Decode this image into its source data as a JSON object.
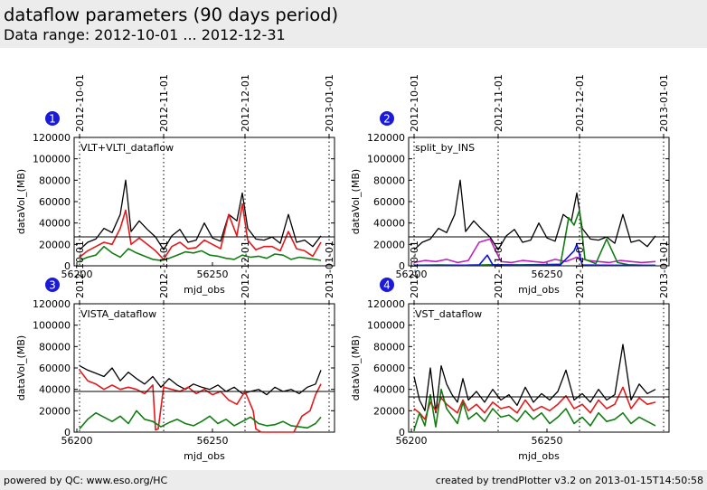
{
  "header": {
    "title": "dataflow parameters (90 days period)",
    "subtitle": "Data range: 2012-10-01 ... 2012-12-31"
  },
  "footer": {
    "left": "powered by QC: www.eso.org/HC",
    "right": "created by trendPlotter v3.2 on 2013-01-15T14:50:58"
  },
  "colors": {
    "black": "#000000",
    "red": "#e31a1c",
    "green": "#137d13",
    "magenta": "#c020c0",
    "blue": "#1010e0",
    "badge": "#1a1ad8"
  },
  "chart_data": [
    {
      "type": "line",
      "badge": "1",
      "title": "VLT+VLTI_dataflow",
      "xlabel": "mjd_obs",
      "ylabel": "dataVol_(MB)",
      "xlim": [
        56199,
        56295
      ],
      "ylim": [
        0,
        120000
      ],
      "xticks": [
        56200,
        56250
      ],
      "yticks": [
        0,
        20000,
        40000,
        60000,
        80000,
        100000,
        120000
      ],
      "date_markers": [
        {
          "label": "2012-10-01",
          "mjd": 56201
        },
        {
          "label": "2012-11-01",
          "mjd": 56232
        },
        {
          "label": "2012-12-01",
          "mjd": 56262
        },
        {
          "label": "2013-01-01",
          "mjd": 56293
        }
      ],
      "hline": 27000,
      "series": [
        {
          "color": "#000000",
          "x": [
            56201,
            56204,
            56207,
            56210,
            56213,
            56216,
            56218,
            56220,
            56223,
            56226,
            56229,
            56232,
            56235,
            56238,
            56241,
            56244,
            56247,
            56250,
            56253,
            56256,
            56259,
            56261,
            56263,
            56266,
            56269,
            56272,
            56275,
            56278,
            56281,
            56284,
            56287,
            56290
          ],
          "values": [
            15000,
            22000,
            25000,
            35000,
            31000,
            48000,
            80000,
            32000,
            42000,
            34000,
            27000,
            15000,
            28000,
            34000,
            22000,
            24000,
            40000,
            26000,
            23000,
            48000,
            42000,
            68000,
            35000,
            25000,
            24000,
            27000,
            21000,
            48000,
            22000,
            24000,
            18000,
            28000
          ]
        },
        {
          "color": "#e31a1c",
          "x": [
            56201,
            56204,
            56207,
            56210,
            56213,
            56216,
            56218,
            56220,
            56223,
            56226,
            56229,
            56232,
            56235,
            56238,
            56241,
            56244,
            56247,
            56250,
            56253,
            56256,
            56259,
            56261,
            56263,
            56266,
            56269,
            56272,
            56275,
            56278,
            56281,
            56284,
            56287,
            56290
          ],
          "values": [
            8000,
            14000,
            18000,
            22000,
            20000,
            35000,
            52000,
            20000,
            26000,
            20000,
            14000,
            6000,
            18000,
            22000,
            16000,
            17000,
            24000,
            20000,
            16000,
            48000,
            28000,
            58000,
            24000,
            15000,
            18000,
            18000,
            14000,
            32000,
            16000,
            14000,
            9000,
            22000
          ]
        },
        {
          "color": "#137d13",
          "x": [
            56201,
            56204,
            56207,
            56210,
            56213,
            56216,
            56219,
            56222,
            56225,
            56228,
            56231,
            56234,
            56237,
            56240,
            56243,
            56246,
            56249,
            56252,
            56255,
            56258,
            56261,
            56264,
            56267,
            56270,
            56273,
            56276,
            56279,
            56282,
            56285,
            56288,
            56290
          ],
          "values": [
            5000,
            8000,
            10000,
            18000,
            12000,
            8000,
            16000,
            12000,
            9000,
            6000,
            5000,
            7000,
            10000,
            13000,
            12000,
            14000,
            10000,
            9000,
            7000,
            6000,
            10000,
            8000,
            9000,
            7000,
            11000,
            10000,
            6000,
            8000,
            7000,
            6000,
            5000
          ]
        }
      ]
    },
    {
      "type": "line",
      "badge": "2",
      "title": "split_by_INS",
      "xlabel": "mjd_obs",
      "ylabel": "dataVol_(MB)",
      "xlim": [
        56199,
        56295
      ],
      "ylim": [
        0,
        120000
      ],
      "xticks": [
        56200,
        56250
      ],
      "yticks": [
        0,
        20000,
        40000,
        60000,
        80000,
        100000,
        120000
      ],
      "date_markers": [
        {
          "label": "2012-10-01",
          "mjd": 56201
        },
        {
          "label": "2012-11-01",
          "mjd": 56232
        },
        {
          "label": "2012-12-01",
          "mjd": 56262
        },
        {
          "label": "2013-01-01",
          "mjd": 56293
        }
      ],
      "hline": 27000,
      "series": [
        {
          "color": "#000000",
          "x": [
            56201,
            56204,
            56207,
            56210,
            56213,
            56216,
            56218,
            56220,
            56223,
            56226,
            56229,
            56232,
            56235,
            56238,
            56241,
            56244,
            56247,
            56250,
            56253,
            56256,
            56259,
            56261,
            56263,
            56266,
            56269,
            56272,
            56275,
            56278,
            56281,
            56284,
            56287,
            56290
          ],
          "values": [
            15000,
            22000,
            25000,
            35000,
            31000,
            48000,
            80000,
            32000,
            42000,
            34000,
            27000,
            15000,
            28000,
            34000,
            22000,
            24000,
            40000,
            26000,
            23000,
            48000,
            42000,
            68000,
            35000,
            25000,
            24000,
            27000,
            21000,
            48000,
            22000,
            24000,
            18000,
            28000
          ]
        },
        {
          "color": "#c020c0",
          "x": [
            56201,
            56205,
            56209,
            56213,
            56217,
            56221,
            56225,
            56229,
            56233,
            56237,
            56241,
            56245,
            56249,
            56253,
            56257,
            56261,
            56265,
            56269,
            56273,
            56277,
            56281,
            56285,
            56290
          ],
          "values": [
            3000,
            5000,
            4000,
            6000,
            3000,
            5000,
            22000,
            25000,
            4000,
            3000,
            5000,
            4000,
            3000,
            6000,
            4000,
            8000,
            5000,
            4000,
            3000,
            5000,
            4000,
            3000,
            4000
          ]
        },
        {
          "color": "#137d13",
          "x": [
            56201,
            56210,
            56220,
            56230,
            56240,
            56250,
            56255,
            56258,
            56260,
            56262,
            56264,
            56268,
            56272,
            56276,
            56280,
            56285,
            56290
          ],
          "values": [
            500,
            800,
            600,
            1000,
            900,
            1200,
            1500,
            45000,
            38000,
            52000,
            6000,
            2000,
            25000,
            3000,
            1000,
            600,
            500
          ]
        },
        {
          "color": "#1010e0",
          "x": [
            56201,
            56210,
            56220,
            56225,
            56228,
            56230,
            56240,
            56250,
            56255,
            56260,
            56261,
            56263,
            56270,
            56280,
            56290
          ],
          "values": [
            500,
            400,
            600,
            800,
            10000,
            900,
            500,
            700,
            1000,
            14000,
            20000,
            800,
            600,
            500,
            400
          ]
        }
      ]
    },
    {
      "type": "line",
      "badge": "3",
      "title": "VISTA_dataflow",
      "xlabel": "mjd_obs",
      "ylabel": "dataVol_(MB)",
      "xlim": [
        56199,
        56295
      ],
      "ylim": [
        0,
        120000
      ],
      "xticks": [
        56200,
        56250
      ],
      "yticks": [
        0,
        20000,
        40000,
        60000,
        80000,
        100000,
        120000
      ],
      "date_markers": [
        {
          "label": "2012-10-01",
          "mjd": 56201
        },
        {
          "label": "2012-11-01",
          "mjd": 56232
        },
        {
          "label": "2012-12-01",
          "mjd": 56262
        },
        {
          "label": "2013-01-01",
          "mjd": 56293
        }
      ],
      "hline": 38000,
      "series": [
        {
          "color": "#000000",
          "x": [
            56201,
            56204,
            56207,
            56210,
            56213,
            56216,
            56219,
            56222,
            56225,
            56228,
            56231,
            56234,
            56237,
            56240,
            56243,
            56246,
            56249,
            56252,
            56255,
            56258,
            56261,
            56264,
            56267,
            56270,
            56273,
            56276,
            56279,
            56282,
            56285,
            56288,
            56290
          ],
          "values": [
            62000,
            58000,
            55000,
            52000,
            60000,
            48000,
            56000,
            50000,
            45000,
            52000,
            42000,
            50000,
            44000,
            40000,
            45000,
            42000,
            40000,
            44000,
            38000,
            42000,
            36000,
            38000,
            40000,
            35000,
            42000,
            38000,
            40000,
            36000,
            42000,
            45000,
            58000
          ]
        },
        {
          "color": "#e31a1c",
          "x": [
            56201,
            56204,
            56207,
            56210,
            56213,
            56216,
            56219,
            56222,
            56225,
            56228,
            56229,
            56230,
            56232,
            56235,
            56238,
            56241,
            56244,
            56247,
            56250,
            56253,
            56256,
            56259,
            56262,
            56265,
            56266,
            56268,
            56271,
            56274,
            56277,
            56280,
            56283,
            56286,
            56288,
            56290
          ],
          "values": [
            58000,
            48000,
            45000,
            40000,
            44000,
            40000,
            42000,
            40000,
            36000,
            44000,
            2000,
            3000,
            42000,
            40000,
            38000,
            42000,
            36000,
            40000,
            35000,
            38000,
            30000,
            26000,
            38000,
            20000,
            3000,
            0,
            0,
            0,
            0,
            0,
            15000,
            20000,
            35000,
            45000
          ]
        },
        {
          "color": "#137d13",
          "x": [
            56201,
            56204,
            56207,
            56210,
            56213,
            56216,
            56219,
            56222,
            56225,
            56228,
            56231,
            56234,
            56237,
            56240,
            56243,
            56246,
            56249,
            56252,
            56255,
            56258,
            56261,
            56264,
            56267,
            56270,
            56273,
            56276,
            56279,
            56282,
            56285,
            56288,
            56290
          ],
          "values": [
            3000,
            12000,
            18000,
            14000,
            10000,
            15000,
            8000,
            20000,
            12000,
            10000,
            5000,
            9000,
            12000,
            8000,
            6000,
            10000,
            15000,
            8000,
            12000,
            6000,
            10000,
            14000,
            8000,
            6000,
            7000,
            10000,
            6000,
            5000,
            4000,
            8000,
            14000
          ]
        }
      ]
    },
    {
      "type": "line",
      "badge": "4",
      "title": "VST_dataflow",
      "xlabel": "mjd_obs",
      "ylabel": "dataVol_(MB)",
      "xlim": [
        56199,
        56295
      ],
      "ylim": [
        0,
        120000
      ],
      "xticks": [
        56200,
        56250
      ],
      "yticks": [
        0,
        20000,
        40000,
        60000,
        80000,
        100000,
        120000
      ],
      "date_markers": [
        {
          "label": "2012-10-01",
          "mjd": 56201
        },
        {
          "label": "2012-11-01",
          "mjd": 56232
        },
        {
          "label": "2012-12-01",
          "mjd": 56262
        },
        {
          "label": "2013-01-01",
          "mjd": 56293
        }
      ],
      "hline": 33000,
      "series": [
        {
          "color": "#000000",
          "x": [
            56201,
            56203,
            56205,
            56207,
            56209,
            56211,
            56213,
            56215,
            56217,
            56219,
            56221,
            56224,
            56227,
            56230,
            56233,
            56236,
            56239,
            56242,
            56245,
            56248,
            56251,
            56254,
            56257,
            56260,
            56263,
            56266,
            56269,
            56272,
            56275,
            56278,
            56281,
            56284,
            56287,
            56290
          ],
          "values": [
            52000,
            30000,
            20000,
            60000,
            18000,
            62000,
            45000,
            35000,
            28000,
            50000,
            30000,
            38000,
            28000,
            40000,
            30000,
            35000,
            25000,
            42000,
            28000,
            36000,
            30000,
            38000,
            58000,
            30000,
            36000,
            28000,
            40000,
            30000,
            35000,
            82000,
            30000,
            45000,
            36000,
            40000
          ]
        },
        {
          "color": "#e31a1c",
          "x": [
            56201,
            56203,
            56205,
            56207,
            56209,
            56211,
            56213,
            56215,
            56217,
            56219,
            56221,
            56224,
            56227,
            56230,
            56233,
            56236,
            56239,
            56242,
            56245,
            56248,
            56251,
            56254,
            56257,
            56260,
            56263,
            56266,
            56269,
            56272,
            56275,
            56278,
            56281,
            56284,
            56287,
            56290
          ],
          "values": [
            22000,
            18000,
            12000,
            28000,
            20000,
            32000,
            26000,
            22000,
            18000,
            30000,
            20000,
            26000,
            18000,
            28000,
            22000,
            24000,
            18000,
            30000,
            20000,
            24000,
            20000,
            26000,
            34000,
            22000,
            26000,
            18000,
            30000,
            22000,
            26000,
            42000,
            22000,
            32000,
            26000,
            28000
          ]
        },
        {
          "color": "#137d13",
          "x": [
            56201,
            56203,
            56205,
            56207,
            56209,
            56211,
            56213,
            56215,
            56217,
            56219,
            56221,
            56224,
            56227,
            56230,
            56233,
            56236,
            56239,
            56242,
            56245,
            56248,
            56251,
            56254,
            56257,
            56260,
            56263,
            56266,
            56269,
            56272,
            56275,
            56278,
            56281,
            56284,
            56287,
            56290
          ],
          "values": [
            2000,
            18000,
            6000,
            35000,
            5000,
            40000,
            22000,
            15000,
            8000,
            28000,
            12000,
            18000,
            10000,
            22000,
            14000,
            16000,
            10000,
            20000,
            12000,
            18000,
            8000,
            14000,
            22000,
            8000,
            14000,
            6000,
            18000,
            10000,
            12000,
            18000,
            8000,
            14000,
            10000,
            6000
          ]
        }
      ]
    }
  ]
}
